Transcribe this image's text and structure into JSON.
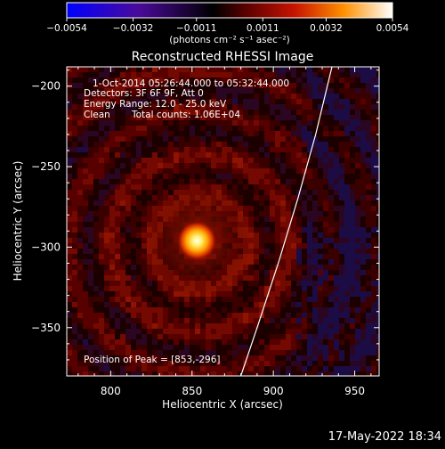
{
  "chart_data": {
    "type": "heatmap",
    "title": "Reconstructed RHESSI Image",
    "xlabel": "Heliocentric X (arcsec)",
    "ylabel": "Heliocentric Y (arcsec)",
    "xlim": [
      773,
      965
    ],
    "ylim": [
      -380,
      -188
    ],
    "x_ticks": [
      800,
      850,
      900,
      950
    ],
    "x_tick_labels": [
      "800",
      "850",
      "900",
      "950"
    ],
    "y_ticks": [
      -200,
      -250,
      -300,
      -350
    ],
    "y_tick_labels": [
      "−200",
      "−250",
      "−300",
      "−350"
    ],
    "colorbar": {
      "min": -0.0054,
      "max": 0.0054,
      "ticks": [
        -0.0054,
        -0.0032,
        -0.0011,
        0.0011,
        0.0032,
        0.0054
      ],
      "tick_labels": [
        "−0.0054",
        "−0.0032",
        "−0.0011",
        "0.0011",
        "0.0032",
        "0.0054"
      ],
      "unit_label": "(photons cm⁻² s⁻¹ asec⁻²)",
      "colormap": [
        "#0000ff",
        "#5a0a8c",
        "#000000",
        "#8a0000",
        "#ff3000",
        "#ffb000",
        "#ffffff"
      ]
    },
    "peak": [
      853,
      -296
    ],
    "limb": [
      {
        "x": 880,
        "y": -380
      },
      {
        "x": 890,
        "y": -350
      },
      {
        "x": 903,
        "y": -310
      },
      {
        "x": 915,
        "y": -270
      },
      {
        "x": 926,
        "y": -230
      },
      {
        "x": 936,
        "y": -188
      }
    ],
    "annotations": [
      "1-Oct-2014 05:26:44.000 to 05:32:44.000",
      "Detectors: 3F 6F 9F, Att 0",
      "Energy Range: 12.0 - 25.0 keV",
      "Clean",
      "Total counts: 1.06E+04",
      "Position of Peak = [853,-296]"
    ]
  },
  "footer_timestamp": "17-May-2022 18:34"
}
